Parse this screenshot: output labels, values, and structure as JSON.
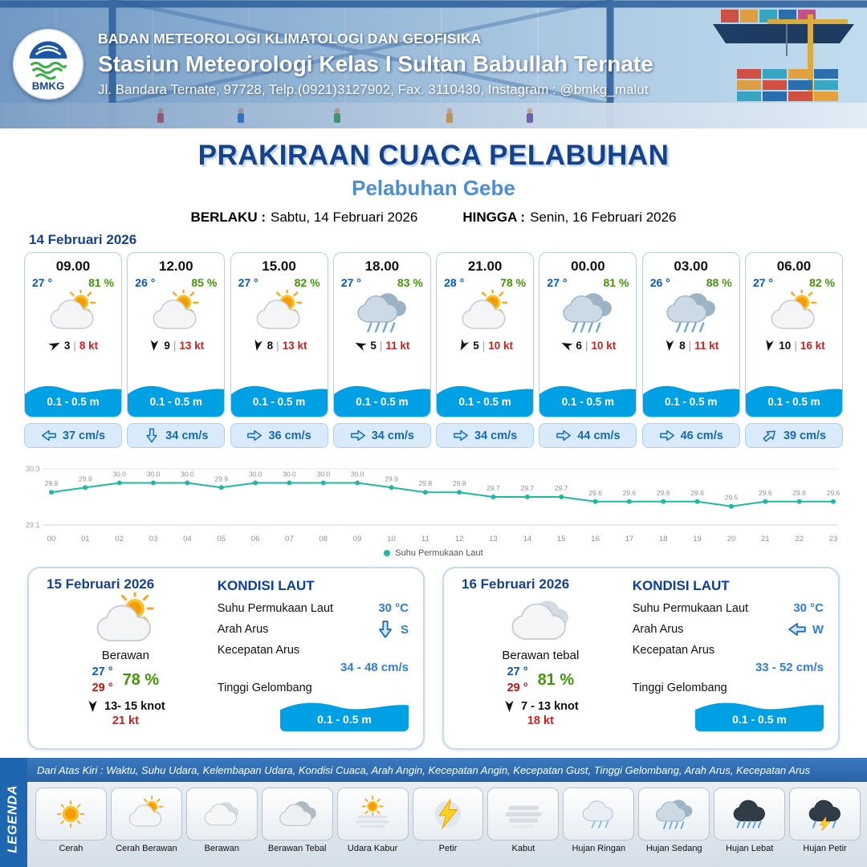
{
  "colors": {
    "navy": "#16418c",
    "port_blue": "#4d8fd6",
    "temp_blue": "#0a58c4",
    "humidity_green": "#44950c",
    "gust_red": "#d01f1f",
    "wave_blue": "#00a0e4",
    "current_blue": "#1668b8",
    "chart_teal": "#20b8a5",
    "legend_bar_blue": "#2f6db5"
  },
  "ui": {
    "wind_sep": "|"
  },
  "header": {
    "org": "BADAN METEOROLOGI KLIMATOLOGI DAN GEOFISIKA",
    "station": "Stasiun Meteorologi Kelas I Sultan Babullah Ternate",
    "address": "Jl. Bandara Ternate, 97728, Telp.(0921)3127902, Fax. 3110430, Instagram : @bmkg_malut",
    "logo_text": "BMKG"
  },
  "title": {
    "main": "PRAKIRAAN CUACA PELABUHAN",
    "port": "Pelabuhan Gebe",
    "berlaku_label": "BERLAKU :",
    "berlaku_value": "Sabtu, 14 Februari 2026",
    "hingga_label": "HINGGA :",
    "hingga_value": "Senin, 16 Februari 2026"
  },
  "day1": {
    "date": "14 Februari 2026",
    "cards": [
      {
        "time": "09.00",
        "temp": "27 °",
        "rh": "81 %",
        "icon": "cerah-berawan",
        "wind_deg": -25,
        "wind_val": "3",
        "wind_kt": "8 kt",
        "wave": "0.1 - 0.5 m",
        "cur_deg": 180,
        "cur": "37 cm/s"
      },
      {
        "time": "12.00",
        "temp": "26 °",
        "rh": "85 %",
        "icon": "cerah-berawan",
        "wind_deg": 95,
        "wind_val": "9",
        "wind_kt": "13 kt",
        "wave": "0.1 - 0.5 m",
        "cur_deg": 90,
        "cur": "34 cm/s"
      },
      {
        "time": "15.00",
        "temp": "27 °",
        "rh": "82 %",
        "icon": "cerah-berawan",
        "wind_deg": 100,
        "wind_val": "8",
        "wind_kt": "13 kt",
        "wave": "0.1 - 0.5 m",
        "cur_deg": 0,
        "cur": "36 cm/s"
      },
      {
        "time": "18.00",
        "temp": "27 °",
        "rh": "83 %",
        "icon": "hujan-sedang",
        "wind_deg": 205,
        "wind_val": "5",
        "wind_kt": "11 kt",
        "wave": "0.1 - 0.5 m",
        "cur_deg": 0,
        "cur": "34 cm/s"
      },
      {
        "time": "21.00",
        "temp": "28 °",
        "rh": "78 %",
        "icon": "cerah-berawan",
        "wind_deg": 115,
        "wind_val": "5",
        "wind_kt": "10 kt",
        "wave": "0.1 - 0.5 m",
        "cur_deg": 0,
        "cur": "34 cm/s"
      },
      {
        "time": "00.00",
        "temp": "27 °",
        "rh": "81 %",
        "icon": "hujan-sedang",
        "wind_deg": 205,
        "wind_val": "6",
        "wind_kt": "10 kt",
        "wave": "0.1 - 0.5 m",
        "cur_deg": 0,
        "cur": "44 cm/s"
      },
      {
        "time": "03.00",
        "temp": "26 °",
        "rh": "88 %",
        "icon": "hujan-sedang",
        "wind_deg": 95,
        "wind_val": "8",
        "wind_kt": "11 kt",
        "wave": "0.1 - 0.5 m",
        "cur_deg": 0,
        "cur": "46 cm/s"
      },
      {
        "time": "06.00",
        "temp": "27 °",
        "rh": "82 %",
        "icon": "cerah-berawan",
        "wind_deg": 100,
        "wind_val": "10",
        "wind_kt": "16 kt",
        "wave": "0.1 - 0.5 m",
        "cur_deg": -40,
        "cur": "39 cm/s"
      }
    ]
  },
  "chart_data": {
    "type": "line",
    "legend": "Suhu Permukaan Laut",
    "x": [
      "00",
      "01",
      "02",
      "03",
      "04",
      "05",
      "06",
      "07",
      "08",
      "09",
      "10",
      "11",
      "12",
      "13",
      "14",
      "15",
      "16",
      "17",
      "18",
      "19",
      "20",
      "21",
      "22",
      "23"
    ],
    "values": [
      29.8,
      29.9,
      30.0,
      30.0,
      30.0,
      29.9,
      30.0,
      30.0,
      30.0,
      30.0,
      29.9,
      29.8,
      29.8,
      29.7,
      29.7,
      29.7,
      29.6,
      29.6,
      29.6,
      29.6,
      29.5,
      29.6,
      29.6,
      29.6
    ],
    "ylim": [
      29.1,
      30.3
    ],
    "line_color": "#20b8a5",
    "grid": "minimal",
    "legend_position": "bottom-center"
  },
  "day2": {
    "date": "15 Februari 2026",
    "icon": "cerah-berawan",
    "condition": "Berawan",
    "temp_min": "27 °",
    "temp_max": "29 °",
    "rh": "78 %",
    "wind_deg": 90,
    "wind": "13- 15 knot",
    "gust": "21 kt",
    "sea": {
      "title": "KONDISI LAUT",
      "sst_label": "Suhu Permukaan Laut",
      "sst": "30 °C",
      "arah_label": "Arah Arus",
      "arah_dir": "S",
      "arah_deg": 90,
      "kec_label": "Kecepatan Arus",
      "kec": "34 - 48 cm/s",
      "gel_label": "Tinggi Gelombang",
      "gel": "0.1 - 0.5 m"
    }
  },
  "day3": {
    "date": "16 Februari 2026",
    "icon": "berawan",
    "condition": "Berawan tebal",
    "temp_min": "27 °",
    "temp_max": "29 °",
    "rh": "81 %",
    "wind_deg": 90,
    "wind": "7 - 13 knot",
    "gust": "18 kt",
    "sea": {
      "title": "KONDISI LAUT",
      "sst_label": "Suhu Permukaan Laut",
      "sst": "30 °C",
      "arah_label": "Arah Arus",
      "arah_dir": "W",
      "arah_deg": 180,
      "kec_label": "Kecepatan Arus",
      "kec": "33 - 52 cm/s",
      "gel_label": "Tinggi Gelombang",
      "gel": "0.1 - 0.5 m"
    }
  },
  "legend": {
    "vertical_label": "LEGENDA",
    "note": "Dari Atas Kiri : Waktu, Suhu Udara, Kelembapan Udara, Kondisi Cuaca, Arah Angin, Kecepatan Angin, Kecepatan Gust, Tinggi Gelombang, Arah Arus, Kecepatan Arus",
    "items": [
      {
        "label": "Cerah",
        "icon": "cerah"
      },
      {
        "label": "Cerah Berawan",
        "icon": "cerah-berawan"
      },
      {
        "label": "Berawan",
        "icon": "berawan"
      },
      {
        "label": "Berawan Tebal",
        "icon": "berawan-tebal"
      },
      {
        "label": "Udara Kabur",
        "icon": "udara-kabur"
      },
      {
        "label": "Petir",
        "icon": "petir"
      },
      {
        "label": "Kabut",
        "icon": "kabut"
      },
      {
        "label": "Hujan Ringan",
        "icon": "hujan-ringan"
      },
      {
        "label": "Hujan Sedang",
        "icon": "hujan-sedang"
      },
      {
        "label": "Hujan Lebat",
        "icon": "hujan-lebat"
      },
      {
        "label": "Hujan Petir",
        "icon": "hujan-petir"
      }
    ]
  }
}
